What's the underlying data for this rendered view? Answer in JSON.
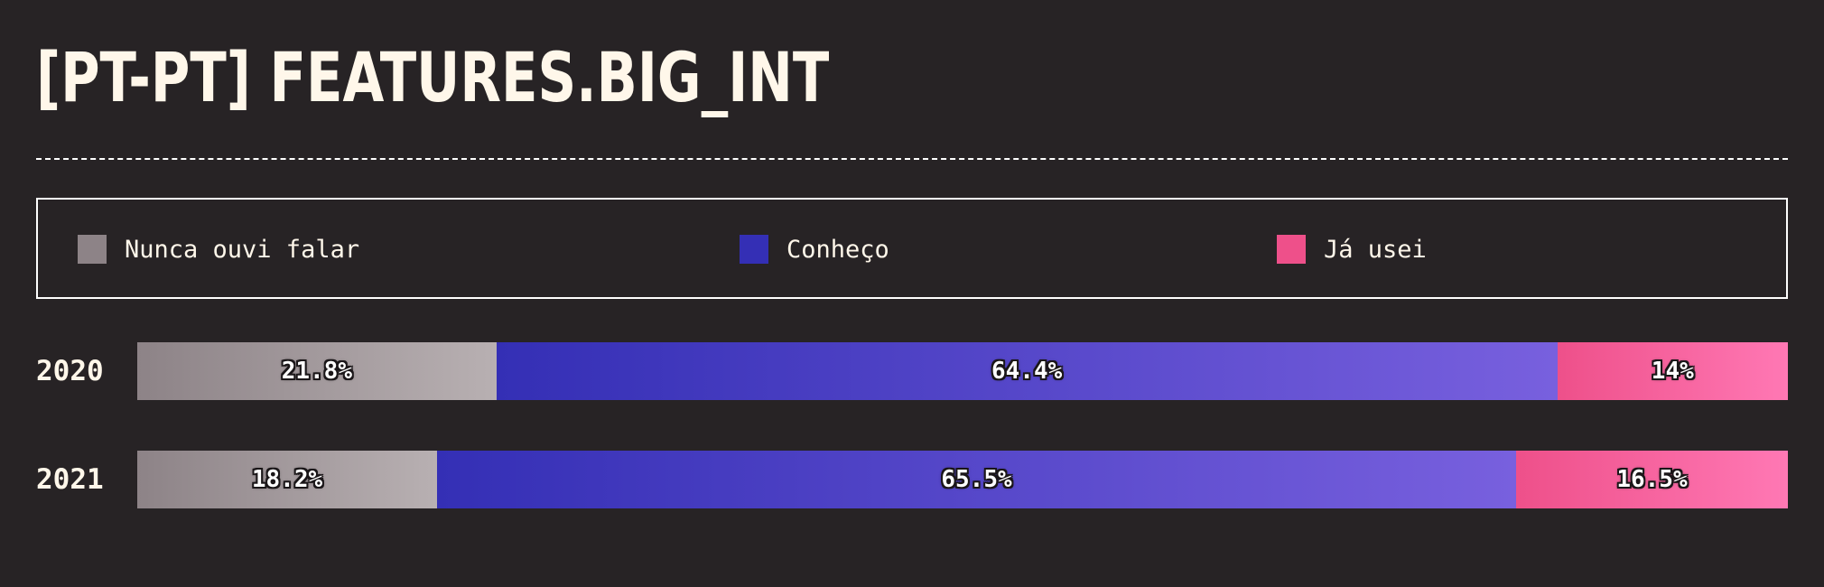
{
  "chart_data": {
    "type": "bar",
    "orientation": "horizontal",
    "stacked": true,
    "normalized": true,
    "title": "[PT-PT] FEATURES.BIG_INT",
    "categories": [
      "2020",
      "2021"
    ],
    "series": [
      {
        "name": "Nunca ouvi falar",
        "color": "#8d8387",
        "values": [
          21.8,
          18.2
        ],
        "value_labels": [
          "21.8%",
          "18.2%"
        ]
      },
      {
        "name": "Conheço",
        "color": "#342fb5",
        "values": [
          64.4,
          65.5
        ],
        "value_labels": [
          "64.4%",
          "65.5%"
        ]
      },
      {
        "name": "Já usei",
        "color": "#ee508a",
        "values": [
          14,
          16.5
        ],
        "value_labels": [
          "14%",
          "16.5%"
        ]
      }
    ],
    "xlim": [
      0,
      100
    ],
    "legend_position": "top",
    "grid": false
  }
}
